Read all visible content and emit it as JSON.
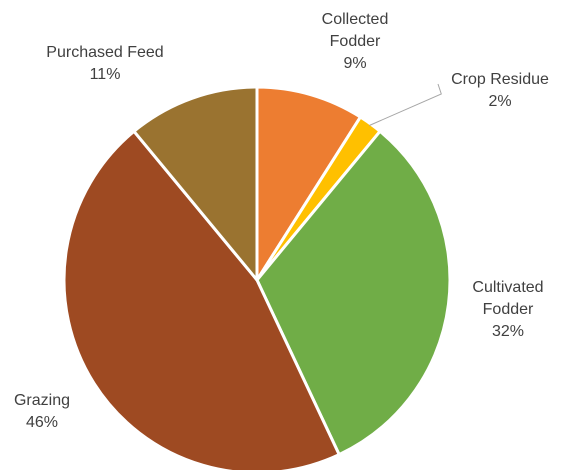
{
  "chart_data": {
    "type": "pie",
    "title": "",
    "start_angle_deg": 0,
    "direction": "clockwise",
    "slices": [
      {
        "label_lines": [
          "Collected",
          "Fodder"
        ],
        "value": 9,
        "value_label": "9%",
        "color": "#ED7D31"
      },
      {
        "label_lines": [
          "Crop Residue"
        ],
        "value": 2,
        "value_label": "2%",
        "color": "#FFC000"
      },
      {
        "label_lines": [
          "Cultivated",
          "Fodder"
        ],
        "value": 32,
        "value_label": "32%",
        "color": "#70AD47"
      },
      {
        "label_lines": [
          "Grazing"
        ],
        "value": 46,
        "value_label": "46%",
        "color": "#9E4A22"
      },
      {
        "label_lines": [
          "Purchased Feed"
        ],
        "value": 11,
        "value_label": "11%",
        "color": "#9A7330"
      }
    ]
  }
}
